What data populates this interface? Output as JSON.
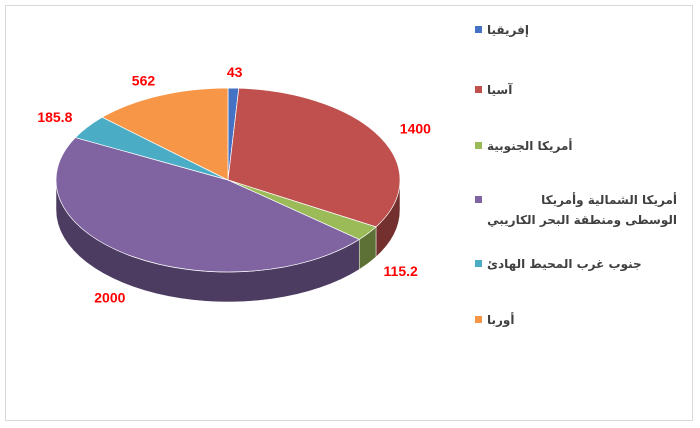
{
  "chart_data": {
    "type": "pie3d",
    "categories": [
      "إفريقيا",
      "آسيا",
      "أمريكا الجنوبية",
      "أمريكا الشمالية وأمريكا الوسطى ومنطقة البحر الكاريبي",
      "جنوب غرب المحيط الهادئ",
      "أوربا"
    ],
    "values": [
      43,
      1400,
      115.2,
      2000,
      185.8,
      562
    ],
    "colors": [
      "#4472c4",
      "#c0504d",
      "#9bbb59",
      "#8064a2",
      "#4bacc6",
      "#f79646"
    ],
    "label_color": "#ff0000"
  }
}
